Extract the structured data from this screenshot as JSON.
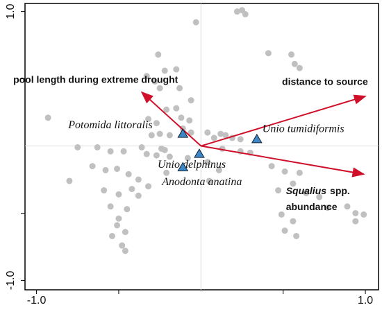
{
  "chart_data": {
    "type": "biplot",
    "xlim": [
      -1.07,
      1.08
    ],
    "ylim": [
      -1.07,
      1.06
    ],
    "xticks": [
      {
        "value": -1.0,
        "label": "-1.0"
      },
      {
        "value": 1.0,
        "label": "1.0"
      }
    ],
    "yticks": [
      {
        "value": -1.0,
        "label": "-1.0"
      },
      {
        "value": 1.0,
        "label": "1.0"
      }
    ],
    "yminor_ticks": [
      -0.5,
      0.5
    ],
    "xminor_ticks": [
      -0.5,
      0.5
    ],
    "point_color": "#c0c0c0",
    "points": {
      "x": [
        0.25,
        0.27,
        0.22,
        -0.03,
        -0.26,
        0.41,
        0.55,
        0.57,
        0.6,
        -0.22,
        -0.15,
        -0.33,
        -0.28,
        -0.25,
        -0.13,
        -0.06,
        -0.15,
        -0.21,
        -0.12,
        -0.07,
        -0.32,
        -0.27,
        -0.93,
        0.04,
        0.12,
        0.15,
        0.19,
        0.24,
        0.08,
        -0.11,
        -0.06,
        -0.25,
        -0.19,
        -0.3,
        -0.75,
        -0.63,
        -0.55,
        -0.47,
        -0.36,
        -0.24,
        -0.22,
        -0.33,
        -0.27,
        -0.19,
        -0.08,
        0.13,
        0.24,
        0.3,
        -0.8,
        -0.66,
        -0.58,
        -0.51,
        -0.44,
        -0.38,
        -0.32,
        -0.42,
        -0.59,
        -0.5,
        -0.38,
        -0.21,
        0.05,
        -0.55,
        -0.45,
        -0.5,
        -0.51,
        -0.54,
        -0.46,
        -0.48,
        -0.46,
        0.43,
        0.51,
        0.6,
        0.56,
        0.47,
        0.64,
        0.72,
        0.77,
        0.49,
        0.56,
        0.58,
        0.51,
        0.89,
        0.94,
        0.99,
        0.94,
        0.04,
        0.11
      ],
      "y": [
        1.01,
        0.98,
        1.0,
        0.92,
        0.68,
        0.69,
        0.68,
        0.61,
        0.58,
        0.56,
        0.57,
        0.52,
        0.48,
        0.43,
        0.43,
        0.34,
        0.28,
        0.27,
        0.21,
        0.19,
        0.2,
        0.17,
        0.21,
        0.1,
        0.09,
        0.08,
        0.06,
        0.05,
        0.06,
        0.13,
        0.1,
        0.09,
        0.08,
        0.08,
        -0.01,
        -0.01,
        -0.04,
        -0.04,
        -0.01,
        -0.02,
        -0.03,
        -0.06,
        -0.07,
        -0.08,
        -0.09,
        -0.02,
        -0.04,
        -0.05,
        -0.26,
        -0.15,
        -0.18,
        -0.17,
        -0.21,
        -0.25,
        -0.3,
        -0.32,
        -0.33,
        -0.36,
        -0.37,
        -0.2,
        -0.26,
        -0.45,
        -0.47,
        -0.54,
        -0.59,
        -0.67,
        -0.64,
        -0.74,
        -0.78,
        -0.15,
        -0.19,
        -0.2,
        -0.28,
        -0.33,
        -0.35,
        -0.38,
        -0.46,
        -0.51,
        -0.56,
        -0.67,
        -0.63,
        -0.45,
        -0.5,
        -0.51,
        -0.56,
        -0.12,
        -0.18
      ]
    },
    "species_color": "#3d87c4",
    "species": [
      {
        "label": "Potomida littoralis",
        "x": -0.11,
        "y": 0.09
      },
      {
        "label": "Unio tumidiformis",
        "x": 0.34,
        "y": 0.05
      },
      {
        "label": "Unio delphinus",
        "x": -0.01,
        "y": -0.06
      },
      {
        "label": "Anodonta anatina",
        "x": -0.11,
        "y": -0.16
      }
    ],
    "arrow_color": "#d0102a",
    "vectors": [
      {
        "label": "pool length during extreme drought",
        "x": -0.36,
        "y": 0.4
      },
      {
        "label": "distance to source",
        "x": 1.0,
        "y": 0.37
      },
      {
        "label_italic": "Squalius",
        "label": "spp.",
        "label_line2": "abundance",
        "x": 0.99,
        "y": -0.21
      }
    ]
  }
}
